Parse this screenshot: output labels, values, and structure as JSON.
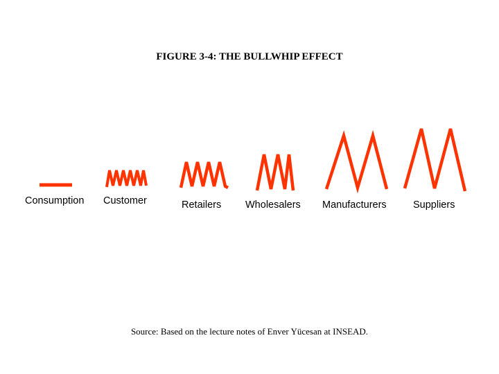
{
  "title": "FIGURE 3-4: THE BULLWHIP EFFECT",
  "stages": [
    {
      "label": "Consumption"
    },
    {
      "label": "Customer"
    },
    {
      "label": "Retailers"
    },
    {
      "label": "Wholesalers"
    },
    {
      "label": "Manufacturers"
    },
    {
      "label": "Suppliers"
    }
  ],
  "source": "Source:  Based on the lecture notes of Enver Yücesan at INSEAD.",
  "colors": {
    "wave": "#ff3300",
    "text": "#000000",
    "background": "#ffffff"
  }
}
